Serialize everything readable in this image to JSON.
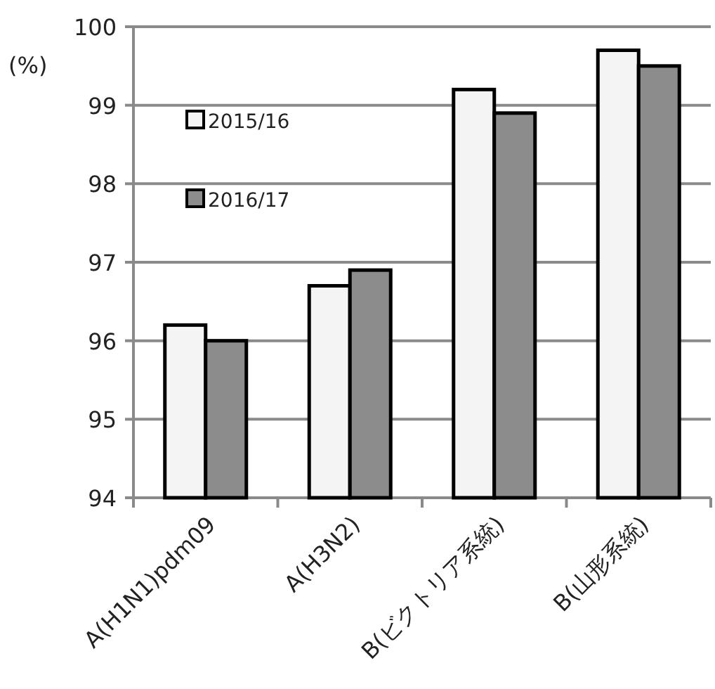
{
  "chart_data": {
    "type": "bar",
    "ylabel": "(%)",
    "categories": [
      "A(H1N1)pdm09",
      "A(H3N2)",
      "B(ビクトリア系統)",
      "B(山形系統)"
    ],
    "series": [
      {
        "name": "2015/16",
        "color": "#f4f4f4",
        "values": [
          96.2,
          96.7,
          99.2,
          99.7
        ]
      },
      {
        "name": "2016/17",
        "color": "#8c8c8c",
        "values": [
          96.0,
          96.9,
          98.9,
          99.5
        ]
      }
    ],
    "ylim": [
      94,
      100
    ],
    "yticks": [
      94,
      95,
      96,
      97,
      98,
      99,
      100
    ],
    "grid": "y",
    "legend": "top left"
  }
}
